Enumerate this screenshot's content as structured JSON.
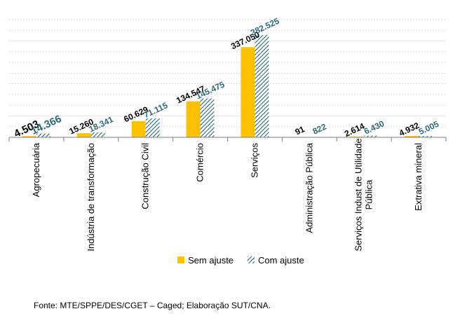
{
  "chart_data": {
    "type": "bar",
    "title": "",
    "xlabel": "",
    "ylabel": "",
    "ylim": [
      0,
      440000
    ],
    "grid": true,
    "legend_position": "bottom",
    "categories": [
      [
        "Agropecuária"
      ],
      [
        "Indústria de transformação"
      ],
      [
        "Construção Civil"
      ],
      [
        "Comércio"
      ],
      [
        "Serviços"
      ],
      [
        "Administração Pública"
      ],
      [
        "Serviços Indust de Utilidade",
        "Pública"
      ],
      [
        "Extrativa mineral"
      ]
    ],
    "series": [
      {
        "name": "Sem ajuste",
        "color": "#FFC000",
        "values": [
          4503,
          15260,
          60629,
          134547,
          337050,
          91,
          2614,
          4932
        ],
        "labels": [
          "4.503",
          "15.260",
          "60.629",
          "134.547",
          "337.050",
          "91",
          "2.614",
          "4.932"
        ]
      },
      {
        "name": "Com ajuste",
        "color": "#2E6A78",
        "values": [
          14366,
          18341,
          71115,
          145475,
          382525,
          822,
          6430,
          5005
        ],
        "labels": [
          "14.366",
          "18.341",
          "71.115",
          "145.475",
          "382.525",
          "822",
          "6.430",
          "5.005"
        ]
      }
    ]
  },
  "source_text": "Fonte:  MTE/SPPE/DES/CGET  – Caged; Elaboração SUT/CNA."
}
